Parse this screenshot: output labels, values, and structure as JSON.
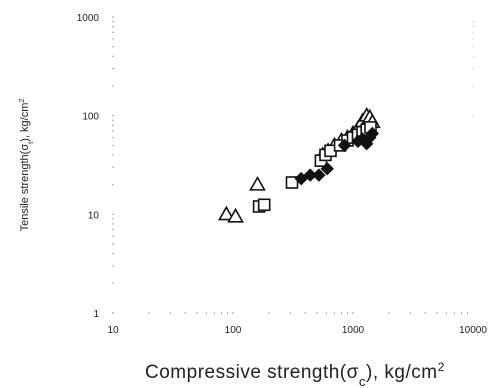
{
  "chart_data": {
    "type": "scatter",
    "title": "",
    "xlabel": "Compressive strength(σc), kg/cm²",
    "ylabel": "Tensile strength(σt), kg/cm²",
    "x_scale": "log",
    "y_scale": "log",
    "xlim": [
      10,
      10000
    ],
    "ylim": [
      1,
      1000
    ],
    "x_ticks": [
      "10",
      "100",
      "1000",
      "10000"
    ],
    "y_ticks": [
      "1",
      "10",
      "100",
      "1000"
    ],
    "grid": false,
    "colors": {
      "marker_stroke": "#111111",
      "filled": "#111111",
      "open": "#ffffff"
    },
    "series": [
      {
        "marker": "triangle-open",
        "points": [
          [
            88,
            10
          ],
          [
            105,
            9.5
          ],
          [
            160,
            20
          ],
          [
            560,
            40
          ],
          [
            620,
            44
          ],
          [
            700,
            50
          ],
          [
            800,
            56
          ],
          [
            900,
            60
          ],
          [
            1000,
            66
          ],
          [
            1100,
            74
          ],
          [
            1200,
            88
          ],
          [
            1300,
            100
          ],
          [
            1380,
            96
          ],
          [
            1450,
            86
          ]
        ]
      },
      {
        "marker": "square-open",
        "points": [
          [
            165,
            12
          ],
          [
            182,
            12.5
          ],
          [
            310,
            21
          ],
          [
            540,
            35
          ],
          [
            590,
            40
          ],
          [
            650,
            44
          ],
          [
            780,
            50
          ],
          [
            900,
            56
          ],
          [
            1000,
            60
          ],
          [
            1100,
            64
          ],
          [
            1200,
            68
          ],
          [
            1300,
            72
          ],
          [
            1400,
            76
          ]
        ]
      },
      {
        "marker": "diamond-filled",
        "points": [
          [
            370,
            23
          ],
          [
            440,
            25
          ],
          [
            520,
            25
          ],
          [
            610,
            29
          ],
          [
            850,
            50
          ],
          [
            1100,
            55
          ],
          [
            1200,
            58
          ],
          [
            1300,
            52
          ],
          [
            1380,
            60
          ],
          [
            1450,
            66
          ]
        ]
      }
    ]
  }
}
